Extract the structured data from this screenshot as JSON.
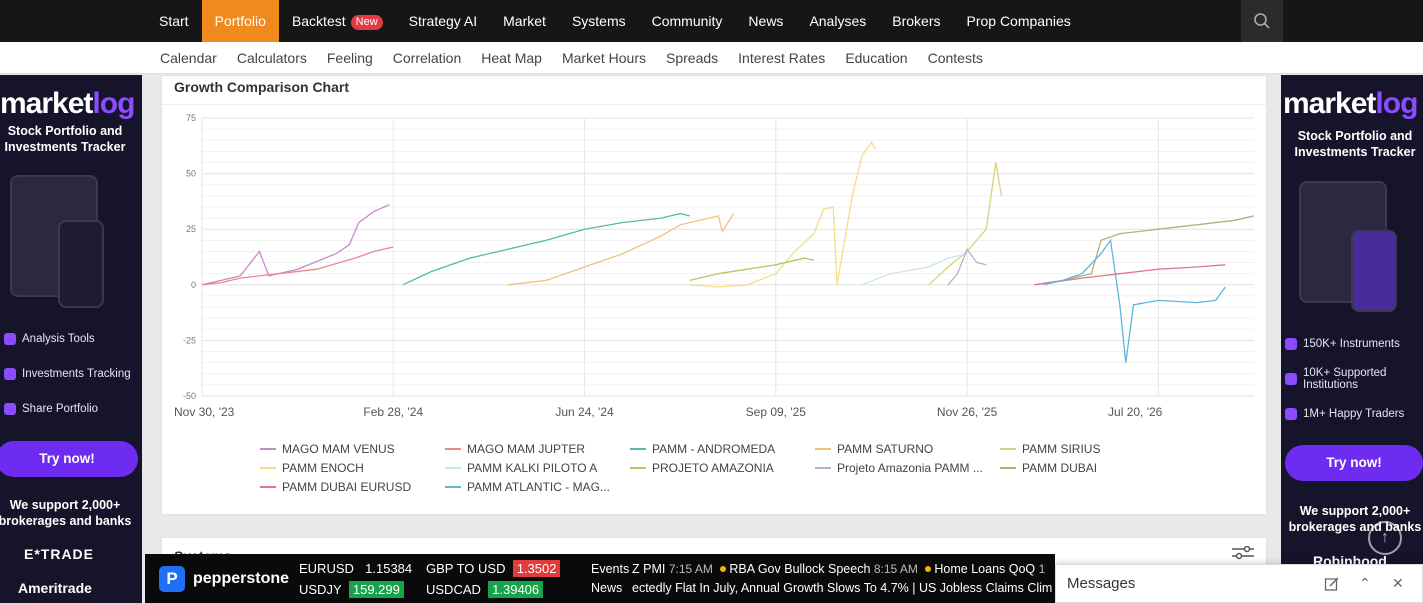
{
  "topnav": {
    "items": [
      {
        "label": "Start"
      },
      {
        "label": "Portfolio",
        "active": true
      },
      {
        "label": "Backtest",
        "badge": "New"
      },
      {
        "label": "Strategy AI"
      },
      {
        "label": "Market"
      },
      {
        "label": "Systems"
      },
      {
        "label": "Community"
      },
      {
        "label": "News"
      },
      {
        "label": "Analyses"
      },
      {
        "label": "Brokers"
      },
      {
        "label": "Prop Companies"
      }
    ],
    "search_icon": "search-icon"
  },
  "subnav": {
    "items": [
      "Calendar",
      "Calculators",
      "Feeling",
      "Correlation",
      "Heat Map",
      "Market Hours",
      "Spreads",
      "Interest Rates",
      "Education",
      "Contests"
    ]
  },
  "ad_left": {
    "logo_a": "market",
    "logo_b": "log",
    "tagline": "Stock Portfolio and Investments Tracker",
    "features": [
      "Analysis Tools",
      "Investments Tracking",
      "Share Portfolio"
    ],
    "cta": "Try now!",
    "support": "We support 2,000+ brokerages and banks",
    "brokers": [
      "E*TRADE",
      "Ameritrade"
    ]
  },
  "ad_right": {
    "logo_a": "market",
    "logo_b": "log",
    "tagline": "Stock Portfolio and Investments Tracker",
    "features": [
      "150K+ Instruments",
      "10K+ Supported Institutions",
      "1M+ Happy Traders"
    ],
    "cta": "Try now!",
    "support": "We support 2,000+ brokerages and banks",
    "brokers": [
      "Robinhood"
    ]
  },
  "card": {
    "title": "Growth Comparison Chart"
  },
  "card2": {
    "title": "Systems"
  },
  "chart_data": {
    "type": "line",
    "title": "Growth Comparison Chart",
    "ylim": [
      -50,
      75
    ],
    "yticks": [
      75,
      50,
      25,
      0,
      -25,
      -50
    ],
    "xticks": [
      "Nov 30, '23",
      "Feb 28, '24",
      "Jun 24, '24",
      "Sep 09, '25",
      "Nov 26, '25",
      "Jul 20, '26"
    ],
    "grid": true,
    "legend_position": "bottom",
    "series": [
      {
        "name": "MAGO MAM VENUS",
        "color": "#c58ac9",
        "points": [
          [
            0,
            0
          ],
          [
            0.1,
            2
          ],
          [
            0.2,
            4
          ],
          [
            0.3,
            15
          ],
          [
            0.35,
            4
          ],
          [
            0.5,
            7
          ],
          [
            0.7,
            14
          ],
          [
            0.77,
            18
          ],
          [
            0.82,
            28
          ],
          [
            0.9,
            33
          ],
          [
            0.98,
            36
          ]
        ]
      },
      {
        "name": "MAGO MAM JUPTER",
        "color": "#e88a8a",
        "points": [
          [
            0,
            0
          ],
          [
            0.1,
            1
          ],
          [
            0.2,
            3
          ],
          [
            0.4,
            5
          ],
          [
            0.6,
            7
          ],
          [
            0.8,
            12
          ],
          [
            0.9,
            15
          ],
          [
            1.0,
            17
          ]
        ]
      },
      {
        "name": "PAMM - ANDROMEDA",
        "color": "#56b8b0",
        "points": [
          [
            1.05,
            0
          ],
          [
            1.2,
            6
          ],
          [
            1.4,
            12
          ],
          [
            1.6,
            16
          ],
          [
            1.8,
            20
          ],
          [
            2.0,
            25
          ],
          [
            2.2,
            28
          ],
          [
            2.4,
            30
          ],
          [
            2.5,
            32
          ],
          [
            2.55,
            31
          ]
        ]
      },
      {
        "name": "PAMM SATURNO",
        "color": "#f2c07d",
        "points": [
          [
            1.6,
            0
          ],
          [
            1.8,
            2
          ],
          [
            2.0,
            8
          ],
          [
            2.2,
            14
          ],
          [
            2.4,
            22
          ],
          [
            2.5,
            27
          ],
          [
            2.7,
            31
          ],
          [
            2.72,
            24
          ],
          [
            2.78,
            32
          ]
        ]
      },
      {
        "name": "PAMM SIRIUS",
        "color": "#d8d37a",
        "points": [
          [
            3.8,
            0
          ],
          [
            3.9,
            8
          ],
          [
            4.0,
            15
          ],
          [
            4.1,
            25
          ],
          [
            4.15,
            55
          ],
          [
            4.18,
            40
          ]
        ]
      },
      {
        "name": "PAMM ENOCH",
        "color": "#f5dd8a",
        "points": [
          [
            2.55,
            0
          ],
          [
            2.7,
            -1
          ],
          [
            2.85,
            0
          ],
          [
            3.0,
            5
          ],
          [
            3.1,
            15
          ],
          [
            3.2,
            23
          ],
          [
            3.25,
            34
          ],
          [
            3.3,
            35
          ],
          [
            3.32,
            0
          ],
          [
            3.4,
            40
          ],
          [
            3.45,
            58
          ],
          [
            3.5,
            64
          ],
          [
            3.52,
            61
          ]
        ]
      },
      {
        "name": "PAMM KALKI PILOTO A",
        "color": "#c8e6f2",
        "points": [
          [
            3.45,
            0
          ],
          [
            3.6,
            5
          ],
          [
            3.8,
            8
          ],
          [
            3.9,
            12
          ],
          [
            4.0,
            14
          ]
        ]
      },
      {
        "name": "PROJETO AMAZONIA",
        "color": "#b7c765",
        "points": [
          [
            2.55,
            2
          ],
          [
            2.7,
            5
          ],
          [
            2.85,
            7
          ],
          [
            3.0,
            9
          ],
          [
            3.15,
            12
          ],
          [
            3.2,
            11
          ]
        ]
      },
      {
        "name": "Projeto Amazonia PAMM ...",
        "color": "#b9afc9",
        "points": [
          [
            3.9,
            0
          ],
          [
            3.95,
            5
          ],
          [
            4.0,
            16
          ],
          [
            4.05,
            10
          ],
          [
            4.1,
            9
          ]
        ]
      },
      {
        "name": "PAMM DUBAI",
        "color": "#b6b07a",
        "points": [
          [
            4.35,
            0
          ],
          [
            4.5,
            2
          ],
          [
            4.65,
            5
          ],
          [
            4.7,
            20
          ],
          [
            4.8,
            23
          ],
          [
            5.0,
            25
          ],
          [
            5.2,
            27
          ],
          [
            5.4,
            29
          ],
          [
            5.5,
            31
          ]
        ]
      },
      {
        "name": "PAMM DUBAI EURUSD",
        "color": "#e0768a",
        "points": [
          [
            4.35,
            0
          ],
          [
            4.6,
            3
          ],
          [
            4.8,
            5
          ],
          [
            5.0,
            7
          ],
          [
            5.2,
            8
          ],
          [
            5.35,
            9
          ]
        ]
      },
      {
        "name": "PAMM ATLANTIC - MAG...",
        "color": "#5fb5dd",
        "points": [
          [
            4.4,
            0
          ],
          [
            4.5,
            2
          ],
          [
            4.6,
            5
          ],
          [
            4.7,
            14
          ],
          [
            4.75,
            20
          ],
          [
            4.8,
            -10
          ],
          [
            4.83,
            -35
          ],
          [
            4.87,
            -9
          ],
          [
            5.0,
            -7
          ],
          [
            5.2,
            -8
          ],
          [
            5.3,
            -7
          ],
          [
            5.35,
            -1
          ]
        ]
      }
    ]
  },
  "ticker": {
    "brand": "pepperstone",
    "pairs": [
      {
        "name": "EURUSD",
        "value": "1.15384",
        "dir": "none"
      },
      {
        "name": "USDJY",
        "value": "159.299",
        "dir": "up"
      },
      {
        "name": "GBP TO USD",
        "value": "1.3502",
        "dir": "down"
      },
      {
        "name": "USDCAD",
        "value": "1.39406",
        "dir": "up"
      }
    ],
    "events_label": "Events",
    "events": [
      {
        "text": "Z PMI",
        "time": "7:15 AM"
      },
      {
        "text": "RBA Gov Bullock Speech",
        "time": "8:15 AM"
      },
      {
        "text": "Home Loans QoQ",
        "time": "1"
      }
    ],
    "news_label": "News",
    "news": "ectedly Flat In July, Annual Growth Slows To 4.7%  |  US Jobless Claims Clim"
  },
  "messages": {
    "title": "Messages"
  }
}
